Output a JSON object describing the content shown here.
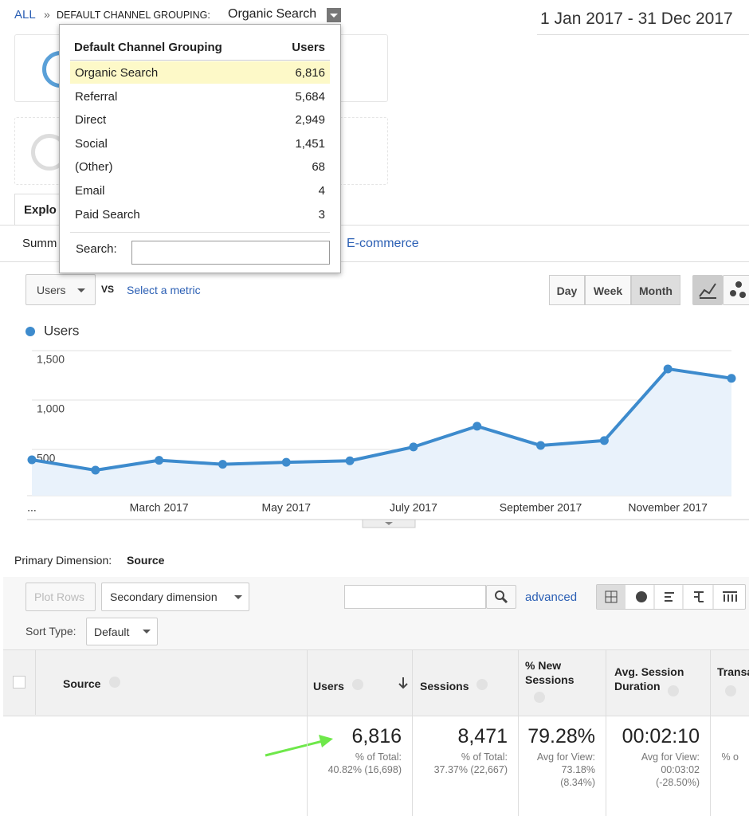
{
  "breadcrumb": {
    "all": "ALL",
    "separator": "»",
    "dimension": "DEFAULT CHANNEL GROUPING:",
    "value": "Organic Search"
  },
  "date_range": "1 Jan 2017 - 31 Dec 2017",
  "channel_dropdown": {
    "header": [
      "Default Channel Grouping",
      "Users"
    ],
    "rows": [
      [
        "Organic Search",
        "6,816"
      ],
      [
        "Referral",
        "5,684"
      ],
      [
        "Direct",
        "2,949"
      ],
      [
        "Social",
        "1,451"
      ],
      [
        "(Other)",
        "68"
      ],
      [
        "Email",
        "4"
      ],
      [
        "Paid Search",
        "3"
      ]
    ],
    "search_label": "Search:"
  },
  "tabs": {
    "explorer": "Explo",
    "summary": "Summ",
    "ecommerce": "E-commerce"
  },
  "metric_bar": {
    "metric": "Users",
    "vs": "VS",
    "select": "Select a metric",
    "periods": [
      "Day",
      "Week",
      "Month"
    ],
    "active_period": 2
  },
  "chart_data": {
    "type": "line",
    "categories": [
      "...",
      null,
      "March 2017",
      null,
      "May 2017",
      null,
      "July 2017",
      null,
      "September 2017",
      null,
      "November 2017",
      null
    ],
    "series": [
      {
        "name": "Users",
        "color": "#3d8bcd",
        "values": [
          395,
          290,
          390,
          350,
          370,
          385,
          525,
          735,
          540,
          590,
          1315,
          1220
        ]
      }
    ],
    "ylim": [
      0,
      1500
    ],
    "yticks": [
      {
        "value": 1500,
        "label": "1,500"
      },
      {
        "value": 1000,
        "label": "1,000"
      },
      500
    ],
    "grid": true
  },
  "primary_dimension": {
    "label": "Primary Dimension:",
    "value": "Source"
  },
  "controls": {
    "plot_rows": "Plot Rows",
    "secondary": "Secondary dimension",
    "advanced": "advanced",
    "sort_label": "Sort Type:",
    "sort_value": "Default"
  },
  "table": {
    "headers": [
      "Source",
      "Users",
      "Sessions",
      "% New Sessions",
      "Avg. Session Duration",
      "Transa"
    ],
    "totals": [
      {
        "main": "6,816",
        "lines": [
          "% of Total:",
          "40.82% (16,698)"
        ]
      },
      {
        "main": "8,471",
        "lines": [
          "% of Total:",
          "37.37% (22,667)"
        ]
      },
      {
        "main": "79.28%",
        "lines": [
          "Avg for View:",
          "73.18%",
          "(8.34%)"
        ]
      },
      {
        "main": "00:02:10",
        "lines": [
          "Avg for View:",
          "00:03:02",
          "(-28.50%)"
        ]
      },
      {
        "main": null,
        "lines": [
          "% o"
        ]
      }
    ]
  }
}
